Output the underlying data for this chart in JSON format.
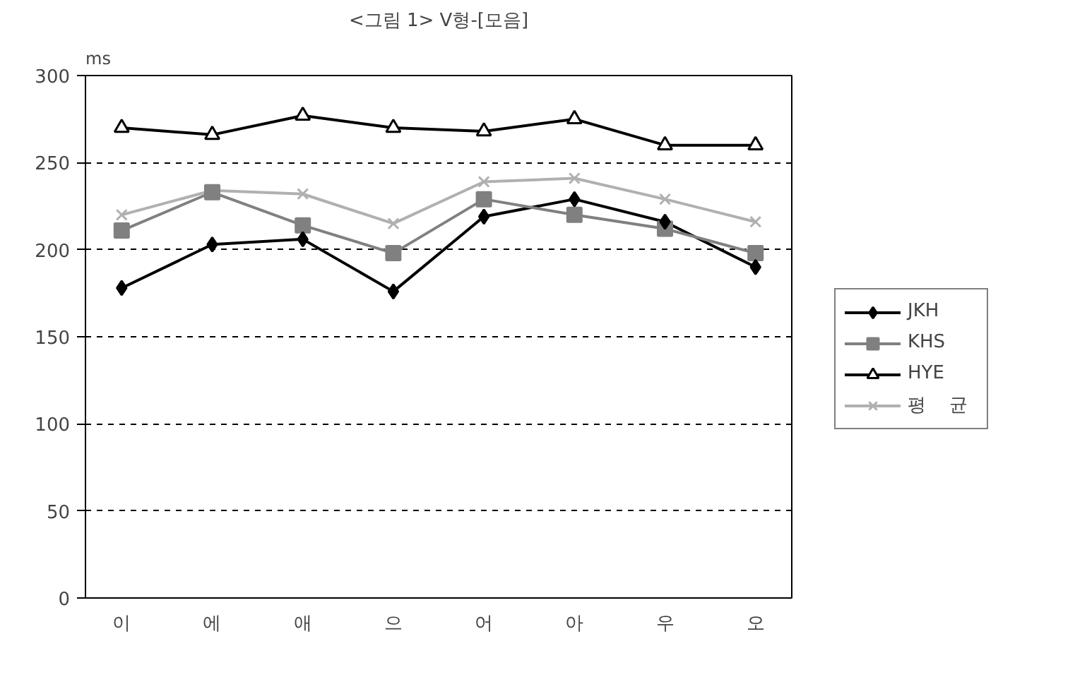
{
  "chart_data": {
    "type": "line",
    "title": "<그림 1> V형-[모음]",
    "ylabel": "ms",
    "categories": [
      "이",
      "에",
      "애",
      "으",
      "어",
      "아",
      "우",
      "오"
    ],
    "series": [
      {
        "name": "JKH",
        "color": "#000000",
        "marker": "diamond",
        "values": [
          178,
          203,
          206,
          176,
          219,
          229,
          216,
          190
        ]
      },
      {
        "name": "KHS",
        "color": "#808080",
        "marker": "square",
        "values": [
          211,
          233,
          214,
          198,
          229,
          220,
          212,
          198
        ]
      },
      {
        "name": "HYE",
        "color": "#000000",
        "marker": "triangle",
        "values": [
          270,
          266,
          277,
          270,
          268,
          275,
          260,
          260
        ]
      },
      {
        "name": "평    균",
        "color": "#b0b0b0",
        "marker": "cross",
        "values": [
          220,
          234,
          232,
          215,
          239,
          241,
          229,
          216
        ]
      }
    ],
    "ylim": [
      0,
      300
    ],
    "yticks": [
      0,
      50,
      100,
      150,
      200,
      250,
      300
    ],
    "grid": "y",
    "legend": "right",
    "line_style": "solid"
  }
}
